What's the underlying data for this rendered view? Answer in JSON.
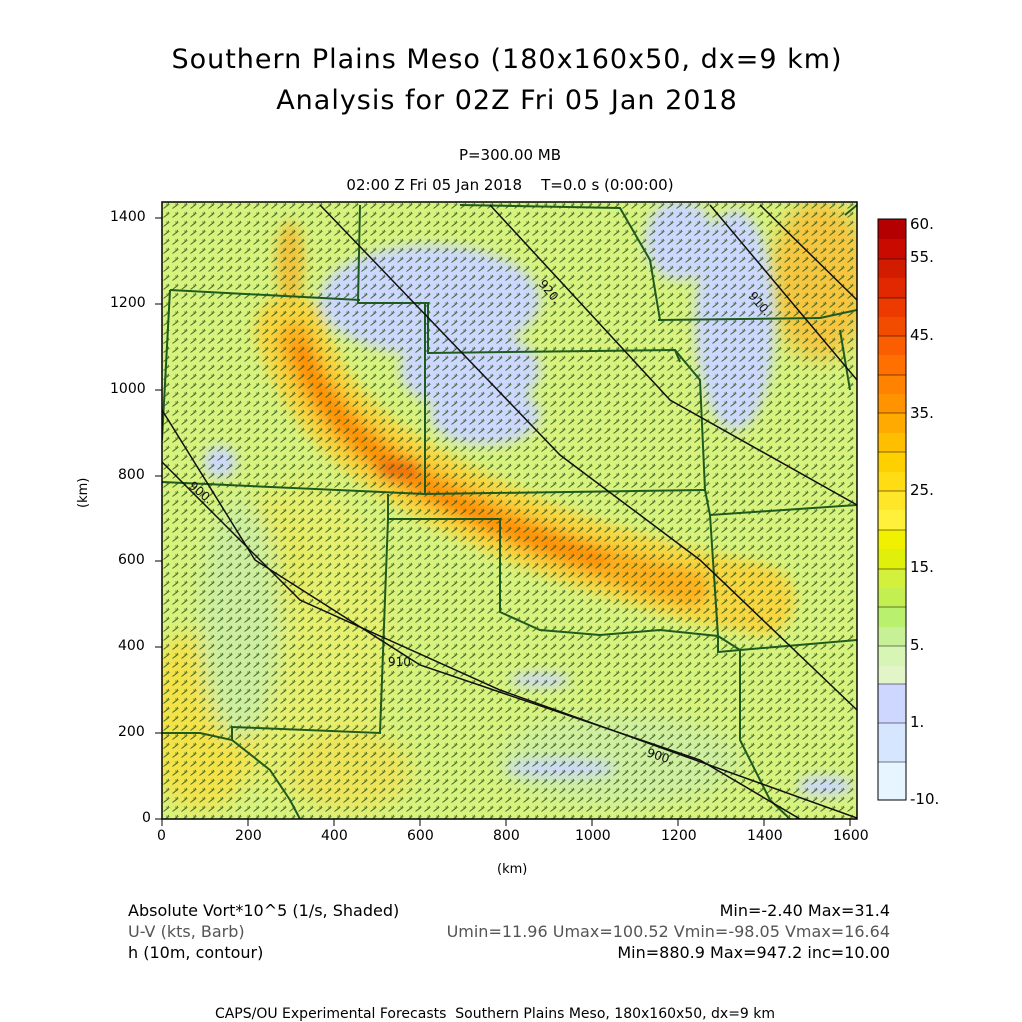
{
  "header": {
    "title_line1": "Southern Plains Meso (180x160x50, dx=9 km)",
    "title_line2": "Analysis for 02Z Fri 05 Jan 2018",
    "level": "P=300.00 MB",
    "time": "02:00 Z Fri 05 Jan 2018    T=0.0 s (0:00:00)"
  },
  "axes": {
    "x_label": "(km)",
    "y_label": "(km)",
    "x_ticks": [
      "0",
      "200",
      "400",
      "600",
      "800",
      "1000",
      "1200",
      "1400",
      "1600"
    ],
    "y_ticks": [
      "0",
      "200",
      "400",
      "600",
      "800",
      "1000",
      "1200",
      "1400"
    ],
    "x_range": [
      0,
      1611
    ],
    "y_range": [
      0,
      1440
    ]
  },
  "colorbar": {
    "labels": [
      "60.",
      "55.",
      "45.",
      "35.",
      "25.",
      "15.",
      "5.",
      "1.",
      "-10."
    ],
    "colors": [
      "#b40000",
      "#cc1400",
      "#e02800",
      "#ee4600",
      "#ff6e00",
      "#ff8c00",
      "#ffb000",
      "#ffd200",
      "#f0f000",
      "#cdf046",
      "#b4f06e",
      "#d2f5b4",
      "#cdd7ff",
      "#d7e6ff",
      "#e6f5ff"
    ]
  },
  "contours": [
    {
      "label": "920."
    },
    {
      "label": "910."
    },
    {
      "label": "900."
    },
    {
      "label": "910."
    },
    {
      "label": "900."
    }
  ],
  "legend": {
    "row1_left": "Absolute Vort*10^5 (1/s, Shaded)",
    "row1_right": "Min=-2.40 Max=31.4",
    "row2_left": "U-V (kts, Barb)",
    "row2_right": "Umin=11.96 Umax=100.52 Vmin=-98.05 Vmax=16.64",
    "row3_left": "h (10m, contour)",
    "row3_right": "Min=880.9 Max=947.2 inc=10.00"
  },
  "footer": "CAPS/OU Experimental Forecasts  Southern Plains Meso, 180x160x50, dx=9 km"
}
